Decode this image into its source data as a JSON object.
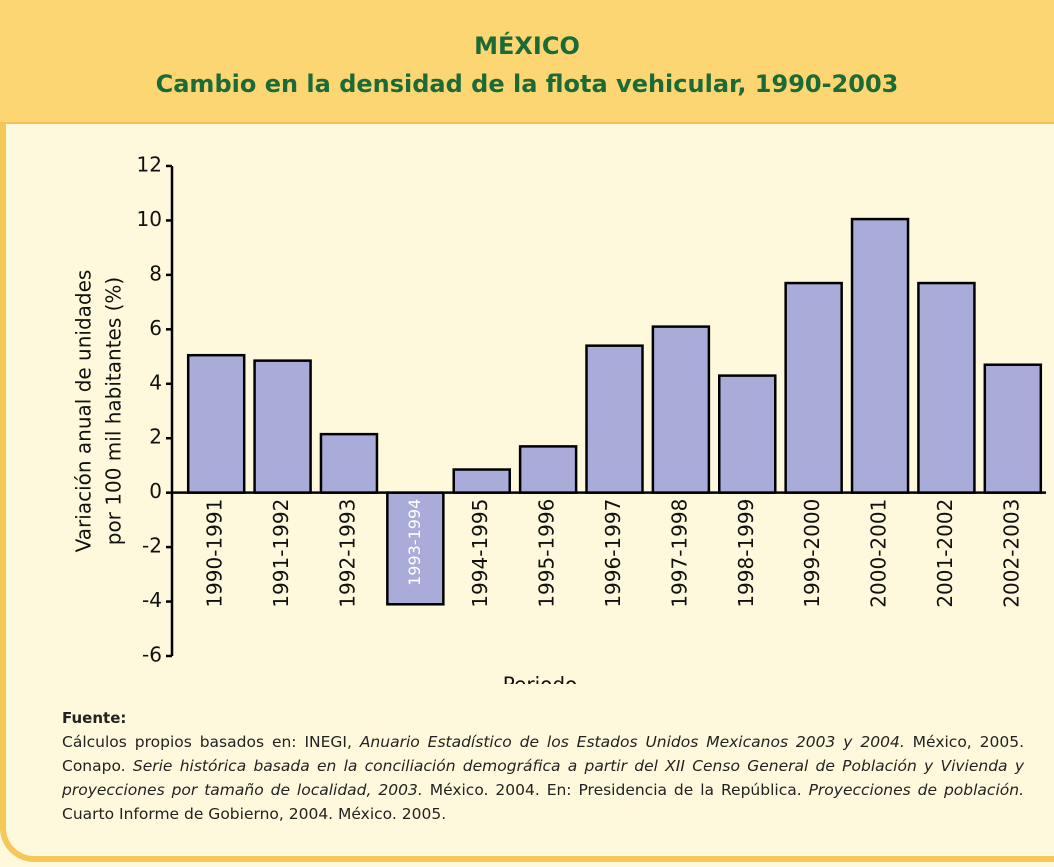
{
  "chart_data": {
    "type": "bar",
    "title": "MÉXICO",
    "subtitle": "Cambio en la densidad de la flota vehicular, 1990-2003",
    "y_label": [
      "Variación anual de unidades",
      "por 100 mil habitantes (%)"
    ],
    "x_label": "Periodo",
    "categories": [
      "1990-1991",
      "1991-1992",
      "1992-1993",
      "1993-1994",
      "1994-1995",
      "1995-1996",
      "1996-1997",
      "1997-1998",
      "1998-1999",
      "1999-2000",
      "2000-2001",
      "2001-2002",
      "2002-2003"
    ],
    "values": [
      5.05,
      4.85,
      2.15,
      -4.1,
      0.85,
      1.7,
      5.4,
      6.1,
      4.3,
      7.7,
      10.05,
      7.7,
      4.7
    ],
    "color": "#a9acd8",
    "ylim": [
      -6,
      12
    ],
    "yticks": [
      -6,
      -4,
      -2,
      0,
      2,
      4,
      6,
      8,
      10,
      12
    ],
    "grid": false
  },
  "source": {
    "heading": "Fuente:",
    "parts": [
      {
        "text": "Cálculos propios basados en: INEGI, ",
        "italic": false
      },
      {
        "text": "Anuario Estadístico de los Estados Unidos Mexicanos 2003 y 2004.",
        "italic": true
      },
      {
        "text": " México, 2005. Conapo. ",
        "italic": false
      },
      {
        "text": "Serie histórica basada en la conciliación demográfica a partir del XII Censo General de Población y Vivienda y proyecciones por tamaño de localidad, 2003.",
        "italic": true
      },
      {
        "text": " México. 2004. En: Presidencia de la República. ",
        "italic": false
      },
      {
        "text": "Proyecciones de población.",
        "italic": true
      },
      {
        "text": " Cuarto Informe de Gobierno, 2004. México. 2005.",
        "italic": false
      }
    ]
  }
}
